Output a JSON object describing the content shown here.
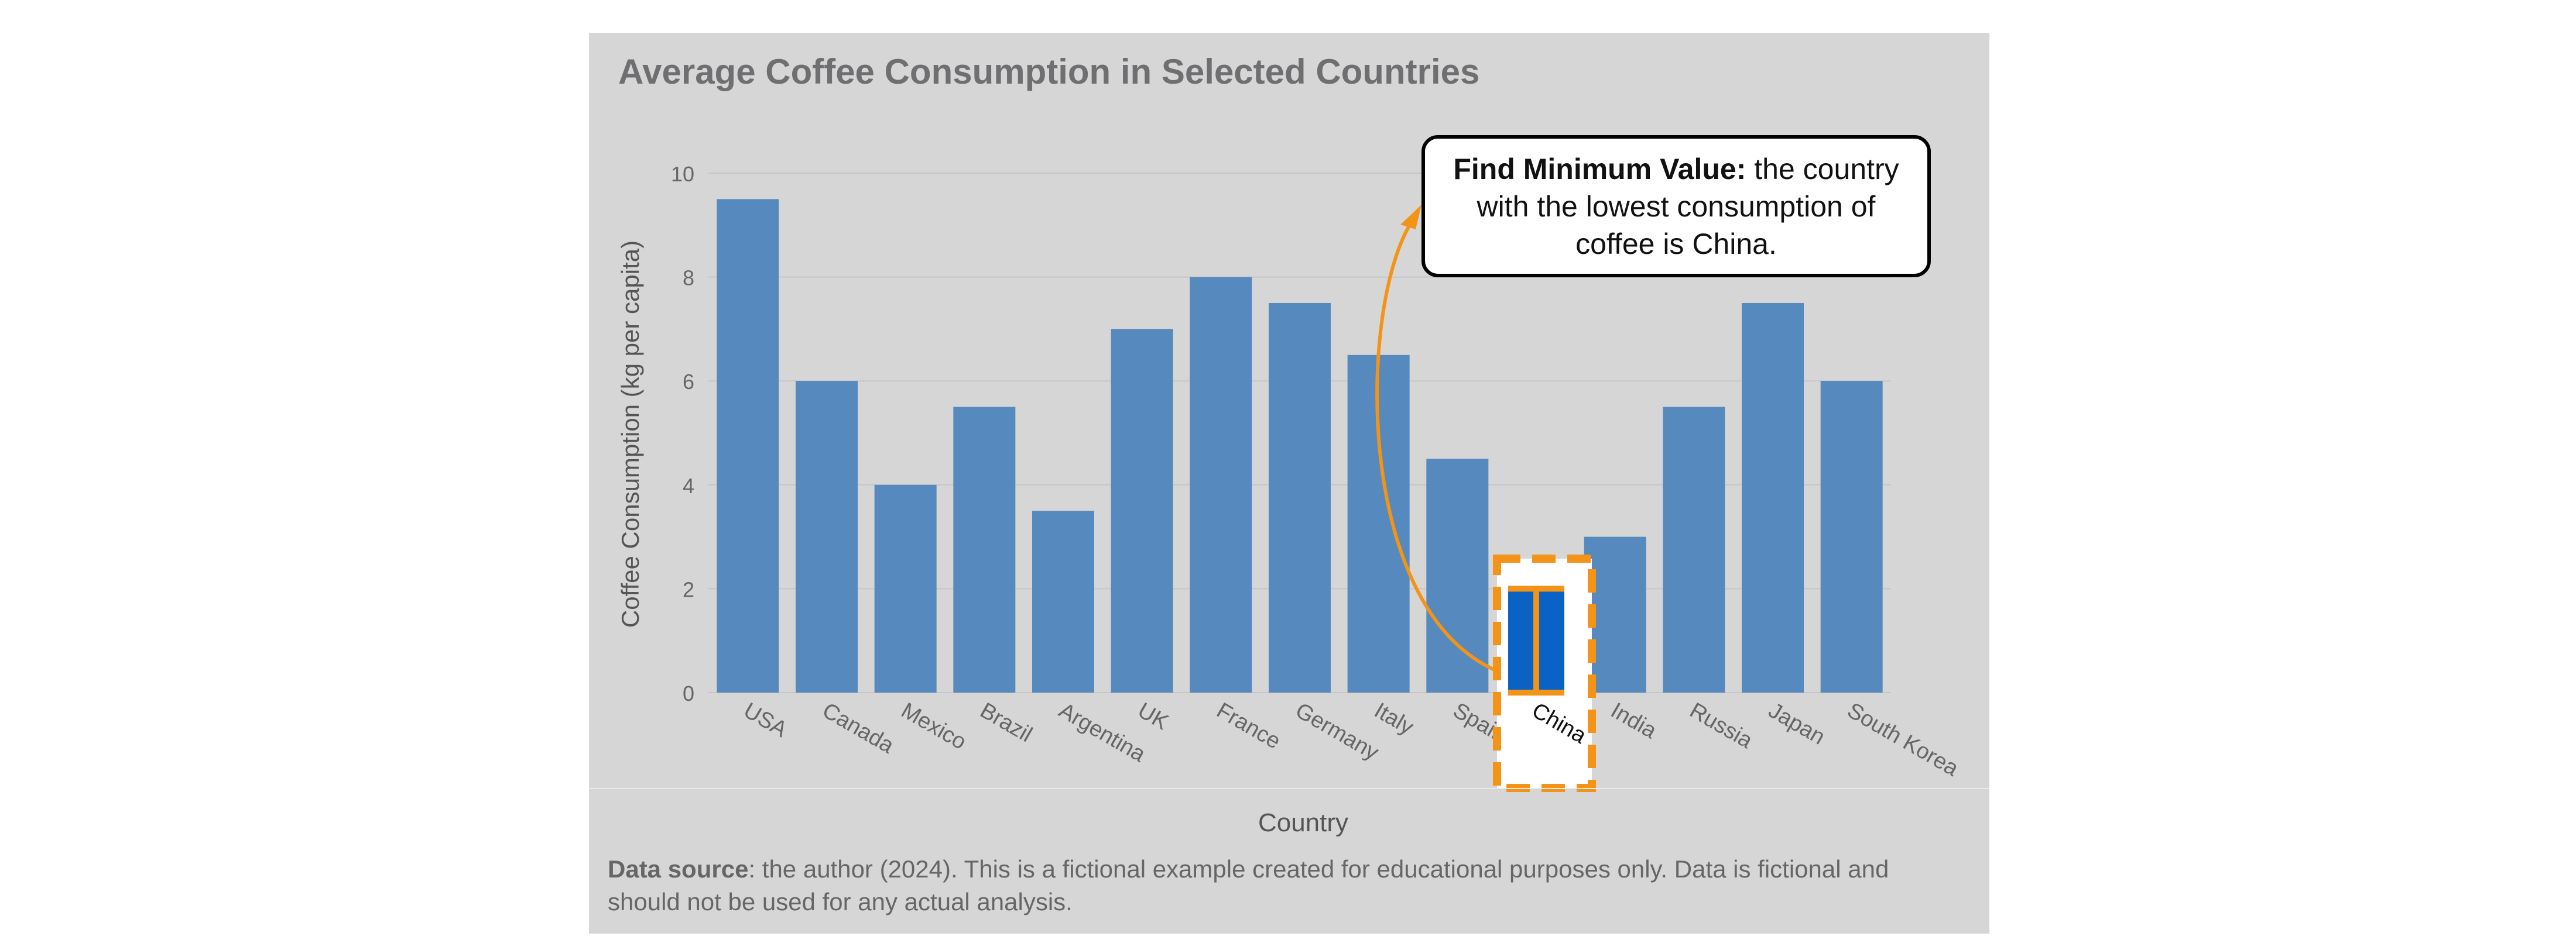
{
  "chart_data": {
    "type": "bar",
    "title": "Average Coffee Consumption in Selected Countries",
    "xlabel": "Country",
    "ylabel": "Coffee Consumption (kg per capita)",
    "ylim": [
      0,
      10
    ],
    "yticks": [
      0,
      2,
      4,
      6,
      8,
      10
    ],
    "grid": true,
    "categories": [
      "USA",
      "Canada",
      "Mexico",
      "Brazil",
      "Argentina",
      "UK",
      "France",
      "Germany",
      "Italy",
      "Spain",
      "China",
      "India",
      "Russia",
      "Japan",
      "South Korea"
    ],
    "values": [
      9.5,
      6,
      4,
      5.5,
      3.5,
      7,
      8,
      7.5,
      6.5,
      4.5,
      2,
      3,
      5.5,
      7.5,
      6
    ],
    "colors": {
      "bar": "#5689bd",
      "highlight_bar": "#0a63c4",
      "highlight_box": "#f39419",
      "arrow": "#f39419"
    },
    "highlight_category": "China",
    "annotation": {
      "bold": "Find Minimum Value:",
      "text": " the country with the lowest consumption of coffee is China."
    }
  },
  "source": {
    "bold": "Data source",
    "text": ": the author (2024). This is a fictional example created for educational purposes only. Data is fictional and should not be used for any actual analysis."
  }
}
